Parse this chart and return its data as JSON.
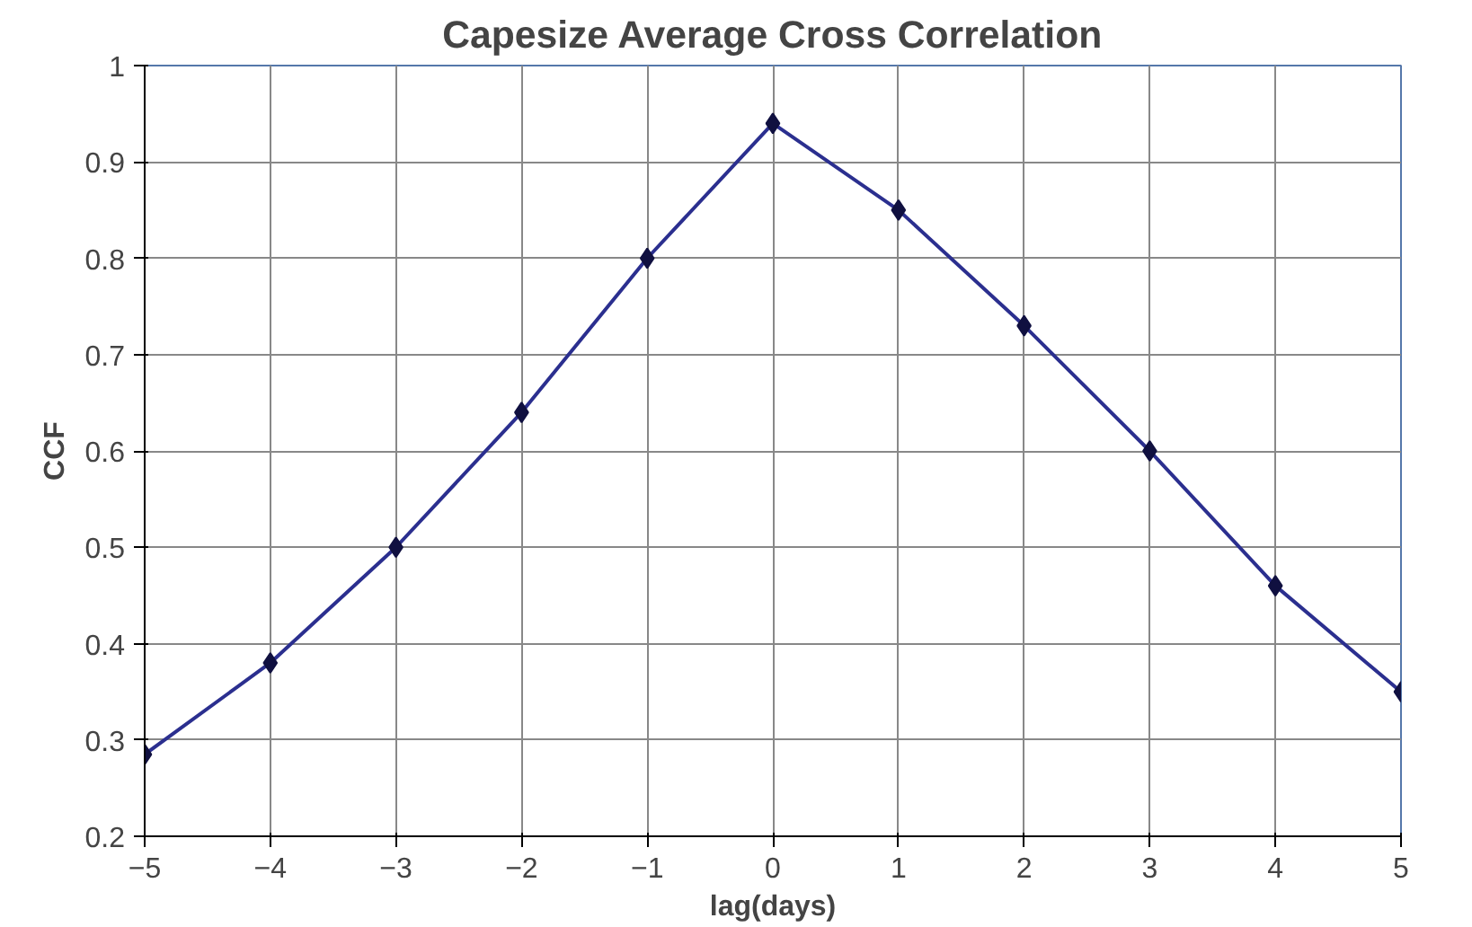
{
  "chart_data": {
    "type": "line",
    "title": "Capesize Average Cross Correlation",
    "xlabel": "lag(days)",
    "ylabel": "CCF",
    "x": [
      -5,
      -4,
      -3,
      -2,
      -1,
      0,
      1,
      2,
      3,
      4,
      5
    ],
    "series": [
      {
        "color": "#2b2f8f",
        "values": [
          0.285,
          0.38,
          0.5,
          0.64,
          0.8,
          0.94,
          0.85,
          0.73,
          0.6,
          0.46,
          0.35
        ]
      }
    ],
    "xlim": [
      -5,
      5
    ],
    "ylim": [
      0.2,
      1
    ],
    "xticks": [
      -5,
      -4,
      -3,
      -2,
      -1,
      0,
      1,
      2,
      3,
      4,
      5
    ],
    "yticks": [
      0.2,
      0.3,
      0.4,
      0.5,
      0.6,
      0.7,
      0.8,
      0.9,
      1
    ],
    "grid": true,
    "marker": "diamond",
    "line_style": "solid"
  }
}
